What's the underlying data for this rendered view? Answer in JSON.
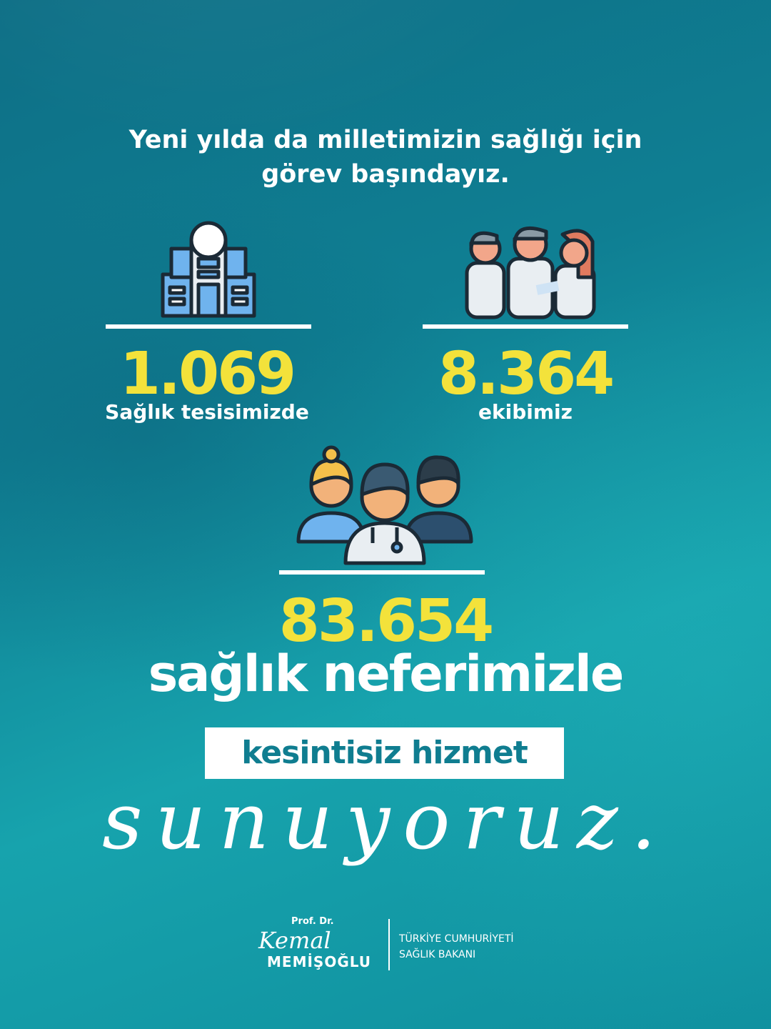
{
  "headline": {
    "line1": "Yeni yılda da milletimizin sağlığı için",
    "line2": "görev başındayız."
  },
  "stats": [
    {
      "value": "1.069",
      "label": "Sağlık tesisimizde",
      "icon": "hospital-icon"
    },
    {
      "value": "8.364",
      "label": "ekibimiz",
      "icon": "medical-team-icon"
    },
    {
      "value": "83.654",
      "label": "sağlık neferimizle",
      "icon": "healthcare-workers-icon"
    }
  ],
  "highlight": "kesintisiz hizmet",
  "closing": "sunuyoruz.",
  "signature": {
    "title": "Prof. Dr.",
    "first_name": "Kemal",
    "last_name": "MEMİŞOĞLU",
    "org_line1": "TÜRKİYE CUMHURİYETİ",
    "org_line2": "SAĞLIK BAKANI"
  },
  "colors": {
    "accent": "#f3e23b",
    "background": "#0f7f93",
    "text": "#ffffff"
  }
}
